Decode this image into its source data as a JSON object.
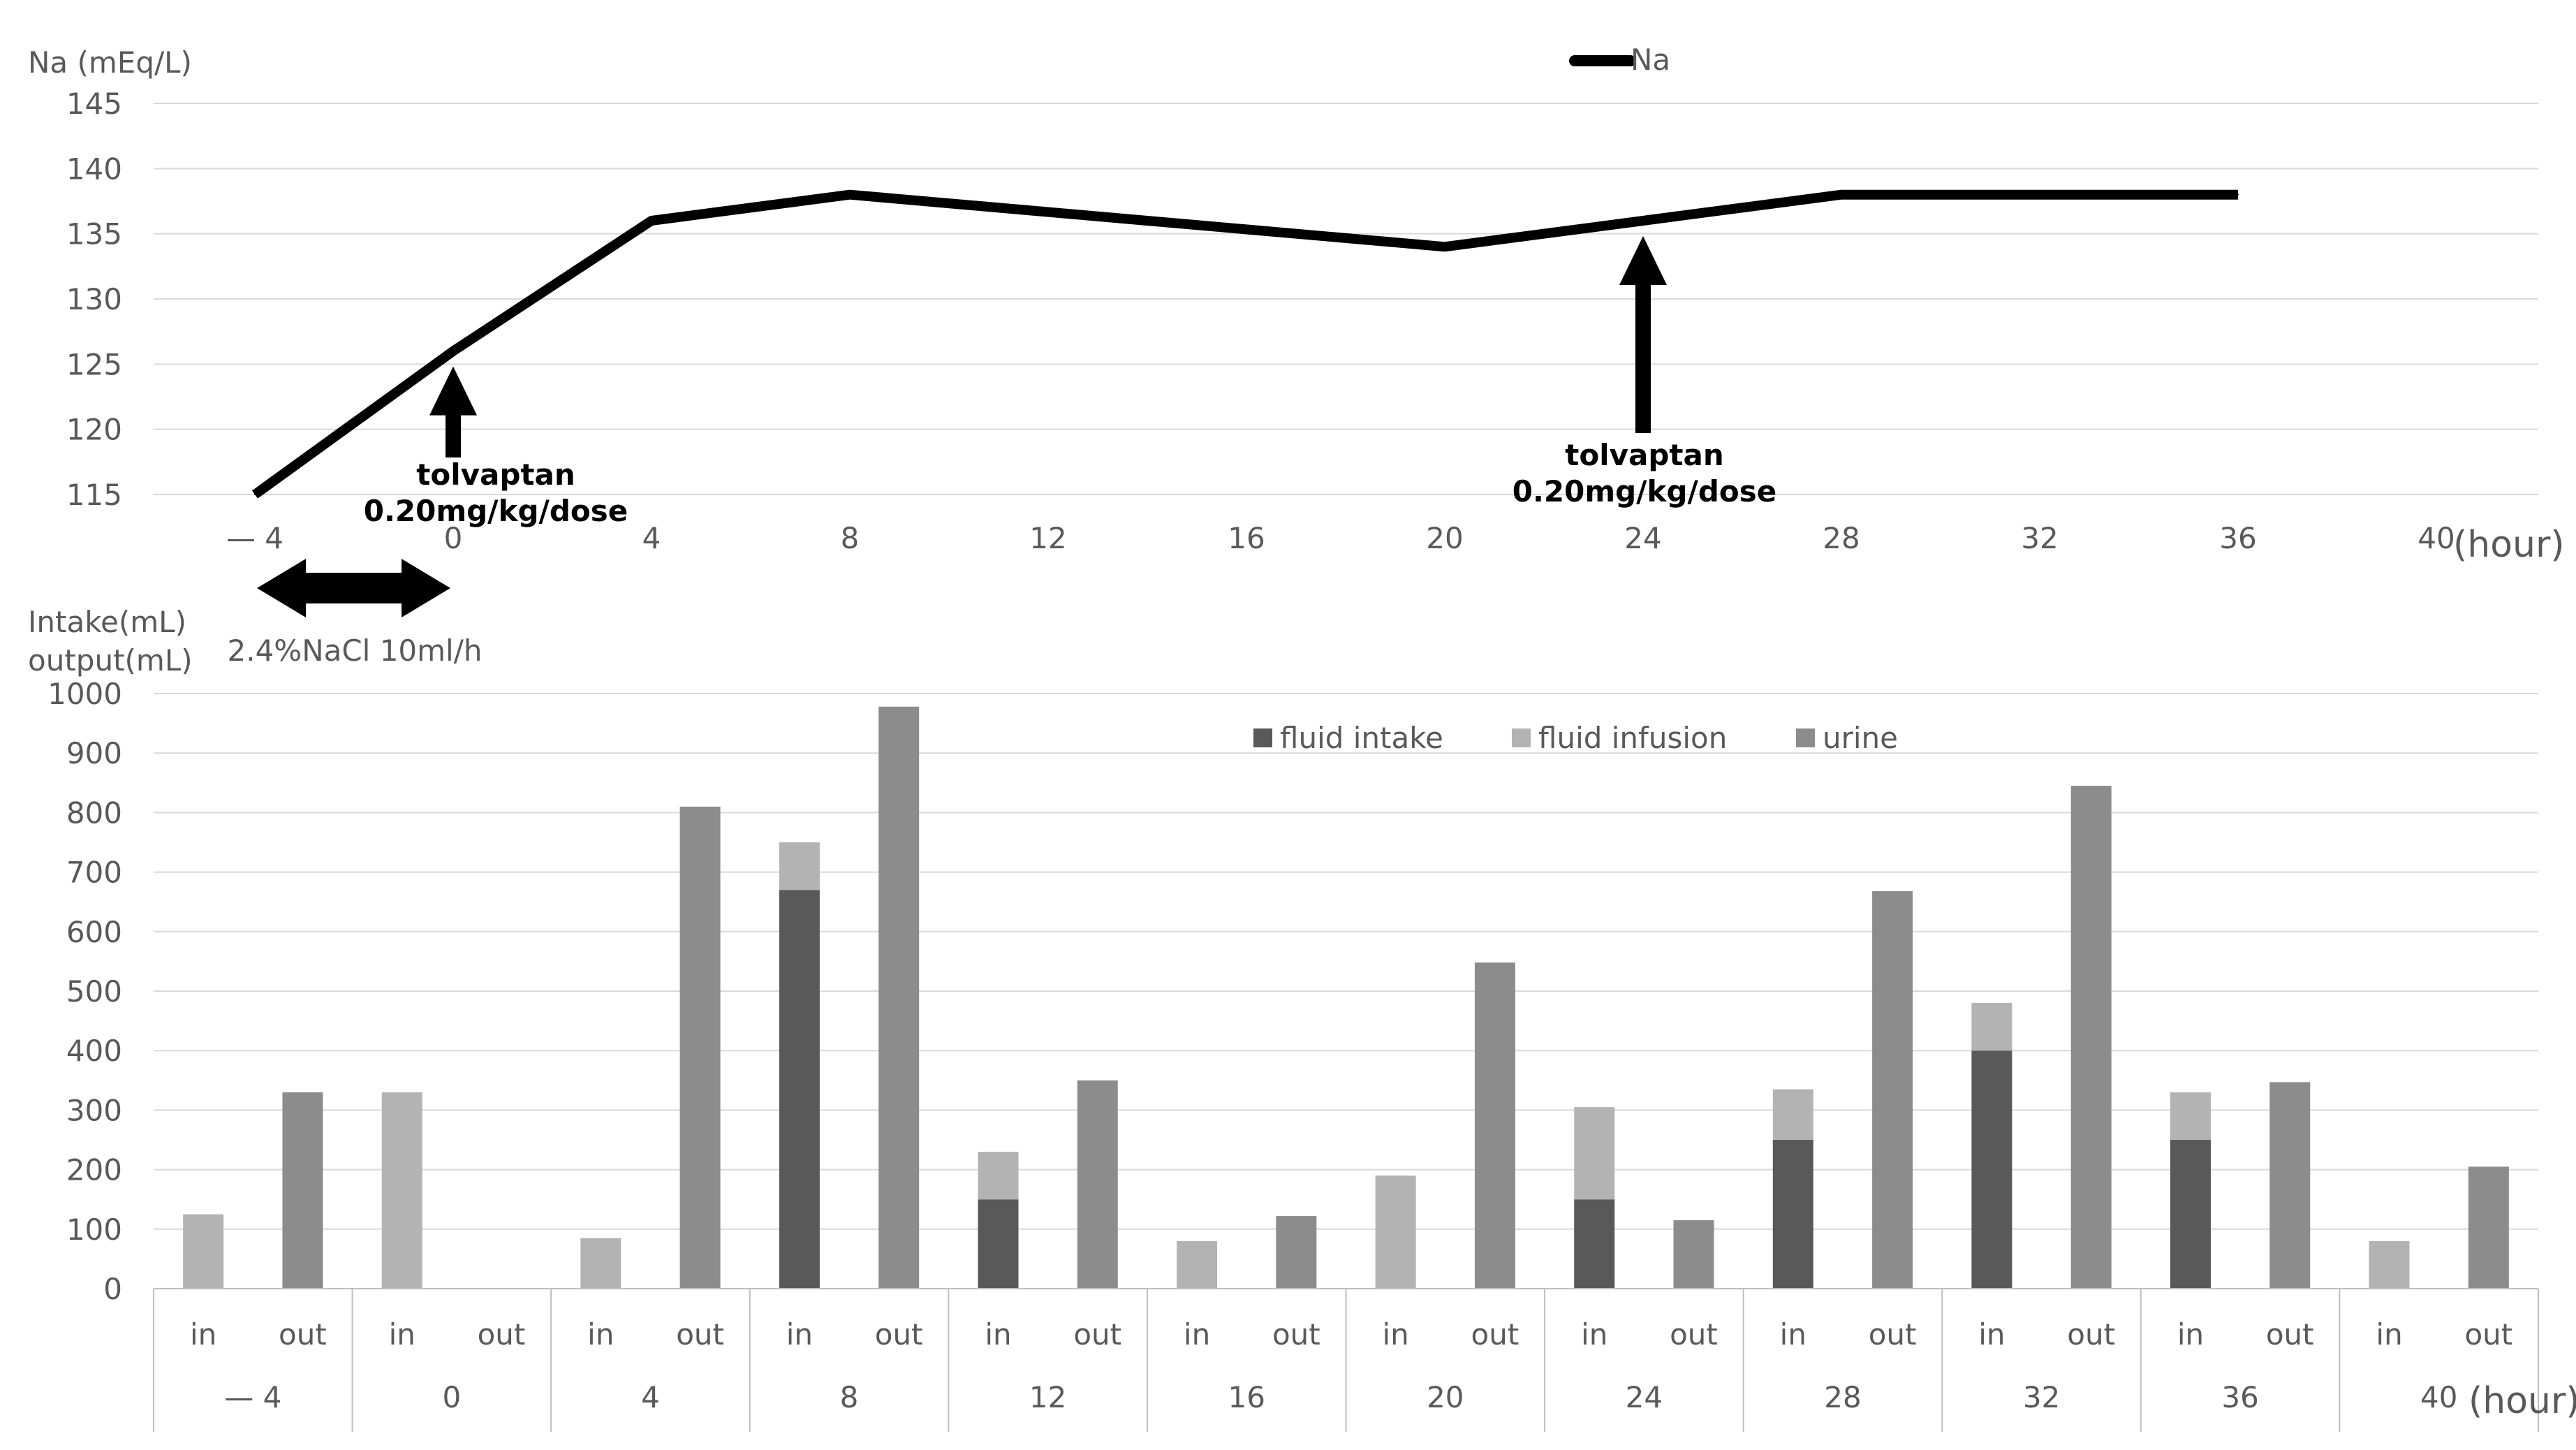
{
  "chart_data": [
    {
      "type": "line",
      "ylabel": "Na (mEq/L)",
      "xunit": "(hour)",
      "legend": {
        "entries": [
          "Na"
        ],
        "placement": "top-center"
      },
      "ylim": [
        115,
        145
      ],
      "yticks": [
        115,
        120,
        125,
        130,
        135,
        140,
        145
      ],
      "xlim": [
        -4,
        40
      ],
      "xtick_values": [
        -4,
        0,
        4,
        8,
        12,
        16,
        20,
        24,
        28,
        32,
        36,
        40
      ],
      "xtick_labels": [
        "— 4",
        "0",
        "4",
        "8",
        "12",
        "16",
        "20",
        "24",
        "28",
        "32",
        "36",
        "40"
      ],
      "grid": true,
      "series": [
        {
          "name": "Na",
          "color": "#000000",
          "points": [
            {
              "x": -4,
              "y": 115
            },
            {
              "x": 0,
              "y": 126
            },
            {
              "x": 4,
              "y": 136
            },
            {
              "x": 8,
              "y": 138
            },
            {
              "x": 20,
              "y": 134
            },
            {
              "x": 24,
              "y": 136
            },
            {
              "x": 28,
              "y": 138
            },
            {
              "x": 36,
              "y": 138
            }
          ]
        }
      ],
      "annotations": [
        {
          "x": 0,
          "lines": [
            "tolvaptan",
            "0.20mg/kg/dose"
          ]
        },
        {
          "x": 24,
          "lines": [
            "tolvaptan",
            "0.20mg/kg/dose"
          ]
        }
      ],
      "infusion": {
        "label": "2.4%NaCl 10ml/h",
        "from": -4,
        "to": 0
      }
    },
    {
      "type": "bar",
      "stacked": true,
      "ylabel_lines": [
        "Intake(mL)",
        "output(mL)"
      ],
      "xunit": "(hour)",
      "ylim": [
        0,
        1000
      ],
      "yticks": [
        0,
        100,
        200,
        300,
        400,
        500,
        600,
        700,
        800,
        900,
        1000
      ],
      "grid": true,
      "legend": {
        "placement": "top-center"
      },
      "groups": [
        "— 4",
        "0",
        "4",
        "8",
        "12",
        "16",
        "20",
        "24",
        "28",
        "32",
        "36",
        "40"
      ],
      "sub_categories": [
        "in",
        "out"
      ],
      "series": [
        {
          "name": "fluid intake",
          "color": "#595959",
          "values": [
            [
              0,
              0
            ],
            [
              0,
              0
            ],
            [
              0,
              0
            ],
            [
              670,
              0
            ],
            [
              150,
              0
            ],
            [
              0,
              0
            ],
            [
              0,
              0
            ],
            [
              150,
              0
            ],
            [
              250,
              0
            ],
            [
              400,
              0
            ],
            [
              250,
              0
            ],
            [
              0,
              0
            ]
          ]
        },
        {
          "name": "fluid infusion",
          "color": "#b3b3b3",
          "values": [
            [
              125,
              0
            ],
            [
              330,
              0
            ],
            [
              85,
              0
            ],
            [
              80,
              0
            ],
            [
              80,
              0
            ],
            [
              80,
              0
            ],
            [
              190,
              0
            ],
            [
              155,
              0
            ],
            [
              85,
              0
            ],
            [
              80,
              0
            ],
            [
              80,
              0
            ],
            [
              80,
              0
            ]
          ]
        },
        {
          "name": "urine",
          "color": "#8c8c8c",
          "values": [
            [
              0,
              330
            ],
            [
              0,
              0
            ],
            [
              0,
              810
            ],
            [
              0,
              978
            ],
            [
              0,
              350
            ],
            [
              0,
              122
            ],
            [
              0,
              548
            ],
            [
              0,
              115
            ],
            [
              0,
              668
            ],
            [
              0,
              845
            ],
            [
              0,
              347
            ],
            [
              0,
              205
            ]
          ]
        }
      ]
    }
  ]
}
